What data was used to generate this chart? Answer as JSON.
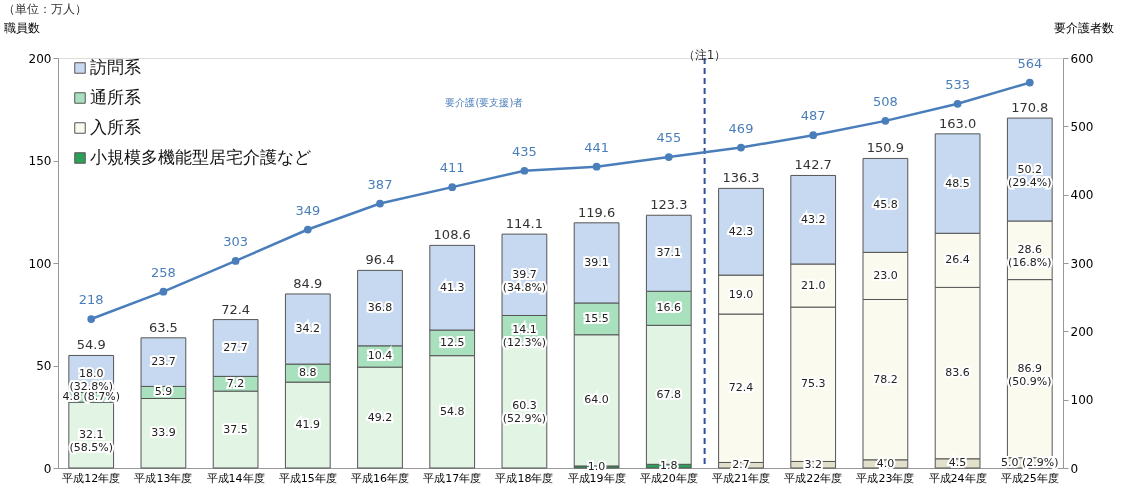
{
  "chart_data": {
    "type": "bar",
    "stacked": true,
    "legend": "top left",
    "categories": [
      "平成12年度",
      "平成13年度",
      "平成14年度",
      "平成15年度",
      "平成16年度",
      "平成17年度",
      "平成18年度",
      "平成19年度",
      "平成20年度",
      "平成21年度",
      "平成22年度",
      "平成23年度",
      "平成24年度",
      "平成25年度"
    ],
    "ylabel": "職員数",
    "annotations": [
      "（単位：万人）"
    ],
    "y2label": "要介護者数",
    "ylim": [
      0,
      200
    ],
    "yticks": [
      0,
      50,
      100,
      150,
      200
    ],
    "y2lim": [
      0,
      600
    ],
    "y2ticks": [
      0,
      100,
      200,
      300,
      400,
      500,
      600
    ],
    "series": [
      {
        "name": "小規模多機能型居宅介護など",
        "color": "#2e9e5b",
        "colors": [
          "#2e9e5b",
          "#2e9e5b",
          "#2e9e5b",
          "#2e9e5b",
          "#2e9e5b",
          "#2e9e5b",
          "#2e9e5b",
          "#2e9e5b",
          "#2e9e5b",
          "#e2dfca",
          "#e2dfca",
          "#e2dfca",
          "#e2dfca",
          "#e2dfca"
        ],
        "values": [
          null,
          null,
          null,
          null,
          null,
          null,
          null,
          1.0,
          1.8,
          2.7,
          3.2,
          4.0,
          4.5,
          5.0
        ],
        "value_labels": [
          null,
          null,
          null,
          null,
          null,
          null,
          null,
          "1.0",
          "1.8",
          "2.7",
          "3.2",
          "4.0",
          "4.5",
          "5.0 (2.9%)"
        ]
      },
      {
        "name": "入所系",
        "color": "#fbfaee",
        "colors": [
          "#e2f4e4",
          "#e2f4e4",
          "#e2f4e4",
          "#e2f4e4",
          "#e2f4e4",
          "#e2f4e4",
          "#e2f4e4",
          "#e2f4e4",
          "#e2f4e4",
          "#fbfaee",
          "#fbfaee",
          "#fbfaee",
          "#fbfaee",
          "#fbfaee"
        ],
        "values": [
          32.1,
          33.9,
          37.5,
          41.9,
          49.2,
          54.8,
          60.3,
          64.0,
          67.8,
          72.4,
          75.3,
          78.2,
          83.6,
          86.9
        ],
        "value_labels": [
          "32.1\n(58.5%)",
          "33.9",
          "37.5",
          "41.9",
          "49.2",
          "54.8",
          "60.3\n(52.9%)",
          "64.0",
          "67.8",
          "72.4",
          "75.3",
          "78.2",
          "83.6",
          "86.9\n(50.9%)"
        ]
      },
      {
        "name": "通所系",
        "color": "#a9e0bd",
        "colors": [
          "#a9e0bd",
          "#a9e0bd",
          "#a9e0bd",
          "#a9e0bd",
          "#a9e0bd",
          "#a9e0bd",
          "#a9e0bd",
          "#a9e0bd",
          "#a9e0bd",
          "#fbfaee",
          "#fbfaee",
          "#fbfaee",
          "#fbfaee",
          "#fbfaee"
        ],
        "values": [
          4.8,
          5.9,
          7.2,
          8.8,
          10.4,
          12.5,
          14.1,
          15.5,
          16.6,
          19.0,
          21.0,
          23.0,
          26.4,
          28.6
        ],
        "value_labels": [
          "4.8 (8.7%)",
          "5.9",
          "7.2",
          "8.8",
          "10.4",
          "12.5",
          "14.1\n(12.3%)",
          "15.5",
          "16.6",
          "19.0",
          "21.0",
          "23.0",
          "26.4",
          "28.6\n(16.8%)"
        ]
      },
      {
        "name": "訪問系",
        "color": "#c6d9f0",
        "colors": [
          "#c6d9f0",
          "#c6d9f0",
          "#c6d9f0",
          "#c6d9f0",
          "#c6d9f0",
          "#c6d9f0",
          "#c6d9f0",
          "#c6d9f0",
          "#c6d9f0",
          "#c6d9f0",
          "#c6d9f0",
          "#c6d9f0",
          "#c6d9f0",
          "#c6d9f0"
        ],
        "values": [
          18.0,
          23.7,
          27.7,
          34.2,
          36.8,
          41.3,
          39.7,
          39.1,
          37.1,
          42.3,
          43.2,
          45.8,
          48.5,
          50.2
        ],
        "value_labels": [
          "18.0\n(32.8%)",
          "23.7",
          "27.7",
          "34.2",
          "36.8",
          "41.3",
          "39.7\n(34.8%)",
          "39.1",
          "37.1",
          "42.3",
          "43.2",
          "45.8",
          "48.5",
          "50.2\n(29.4%)"
        ]
      },
      {
        "name": "要介護(要支援)者",
        "type": "line",
        "axis": "y2",
        "marker": "circle",
        "color": "#4a7ebb",
        "values": [
          218,
          258,
          303,
          349,
          387,
          411,
          435,
          441,
          455,
          469,
          487,
          508,
          533,
          564
        ],
        "value_labels": [
          "218",
          "258",
          "303",
          "349",
          "387",
          "411",
          "435",
          "441",
          "455",
          "469",
          "487",
          "508",
          "533",
          "564"
        ]
      }
    ],
    "totals": [
      "54.9",
      "63.5",
      "72.4",
      "84.9",
      "96.4",
      "108.6",
      "114.1",
      "119.6",
      "123.3",
      "136.3",
      "142.7",
      "150.9",
      "163.0",
      "170.8"
    ],
    "ref_lines": [
      {
        "axis": "x",
        "value": "平成21年度",
        "label": "（注1）",
        "line_style": "dashed",
        "color": "#2f4f9f"
      }
    ]
  }
}
